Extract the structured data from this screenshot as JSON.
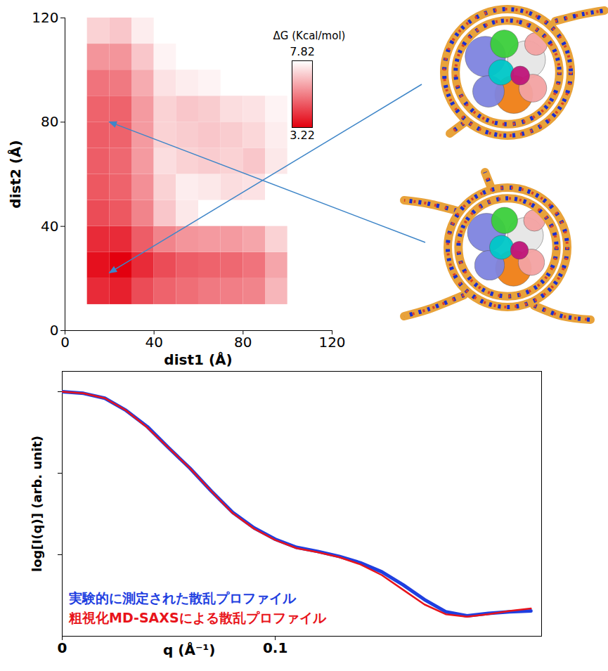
{
  "chart_data": [
    {
      "type": "heatmap",
      "xlabel": "dist1 (Å)",
      "ylabel": "dist2 (Å)",
      "xlim": [
        0,
        120
      ],
      "ylim": [
        0,
        120
      ],
      "xticks": [
        0,
        40,
        80,
        120
      ],
      "yticks": [
        0,
        40,
        80,
        120
      ],
      "x_bins": [
        0,
        10,
        20,
        30,
        40,
        50,
        60,
        70,
        80,
        90,
        100,
        110,
        120
      ],
      "y_bins": [
        0,
        10,
        20,
        30,
        40,
        50,
        60,
        70,
        80,
        90,
        100,
        110,
        120
      ],
      "z": [
        [
          null,
          null,
          null,
          null,
          null,
          null,
          null,
          null,
          null,
          null,
          null,
          null
        ],
        [
          null,
          4.0,
          3.8,
          4.6,
          5.0,
          5.2,
          5.4,
          5.5,
          5.6,
          6.5,
          null,
          null
        ],
        [
          null,
          3.5,
          3.22,
          4.0,
          4.6,
          4.9,
          5.0,
          5.1,
          5.3,
          6.2,
          null,
          null
        ],
        [
          null,
          4.0,
          4.0,
          4.9,
          5.6,
          5.9,
          6.0,
          6.0,
          6.2,
          7.0,
          null,
          null
        ],
        [
          null,
          4.6,
          4.8,
          5.6,
          6.8,
          7.4,
          null,
          null,
          null,
          null,
          null,
          null
        ],
        [
          null,
          4.8,
          5.0,
          5.8,
          7.0,
          7.5,
          7.4,
          7.2,
          7.3,
          null,
          null,
          null
        ],
        [
          null,
          4.9,
          5.1,
          6.0,
          7.2,
          7.0,
          6.9,
          7.0,
          6.8,
          7.4,
          null,
          null
        ],
        [
          null,
          4.9,
          5.0,
          6.0,
          7.0,
          6.9,
          6.8,
          6.9,
          7.1,
          7.5,
          null,
          null
        ],
        [
          null,
          5.0,
          5.0,
          6.0,
          7.0,
          6.8,
          6.9,
          7.2,
          7.3,
          7.6,
          null,
          null
        ],
        [
          null,
          5.3,
          5.4,
          6.3,
          7.3,
          7.5,
          7.6,
          null,
          null,
          null,
          null,
          null
        ],
        [
          null,
          5.9,
          5.9,
          6.8,
          7.6,
          null,
          null,
          null,
          null,
          null,
          null,
          null
        ],
        [
          null,
          7.0,
          6.8,
          7.5,
          null,
          null,
          null,
          null,
          null,
          null,
          null,
          null
        ]
      ],
      "zlabel": "ΔG (Kcal/mol)",
      "zlim": [
        3.22,
        7.82
      ],
      "zticks": [
        3.22,
        7.82
      ],
      "arrows": [
        {
          "x": 20,
          "y": 22
        },
        {
          "x": 20,
          "y": 80
        }
      ]
    },
    {
      "type": "line",
      "xlabel": "q (Å⁻¹)",
      "ylabel": "log[I(q)] (arb. unit)",
      "xlim": [
        0,
        0.225
      ],
      "ylim": [
        0,
        3.25
      ],
      "xticks": [
        0,
        0.1
      ],
      "yticks": [
        1,
        2,
        3
      ],
      "tick_labels": "x",
      "legend": "lower left",
      "x": [
        0,
        0.01,
        0.02,
        0.03,
        0.04,
        0.05,
        0.06,
        0.07,
        0.08,
        0.09,
        0.1,
        0.11,
        0.12,
        0.13,
        0.14,
        0.15,
        0.16,
        0.17,
        0.18,
        0.19,
        0.2,
        0.21,
        0.22
      ],
      "series": [
        {
          "name": "実験的に測定された散乱プロファイル",
          "color": "#1f3fe0",
          "values": [
            3.0,
            2.98,
            2.92,
            2.77,
            2.57,
            2.31,
            2.06,
            1.78,
            1.52,
            1.33,
            1.19,
            1.09,
            1.04,
            0.98,
            0.9,
            0.79,
            0.63,
            0.45,
            0.3,
            0.25,
            0.28,
            0.3,
            0.31
          ]
        },
        {
          "name": "粗視化MD-SAXSによる散乱プロファイル",
          "color": "#e8141b",
          "values": [
            3.0,
            2.98,
            2.92,
            2.77,
            2.56,
            2.31,
            2.06,
            1.78,
            1.51,
            1.32,
            1.18,
            1.08,
            1.03,
            0.97,
            0.88,
            0.75,
            0.57,
            0.39,
            0.27,
            0.24,
            0.27,
            0.31,
            0.34
          ]
        }
      ]
    }
  ]
}
